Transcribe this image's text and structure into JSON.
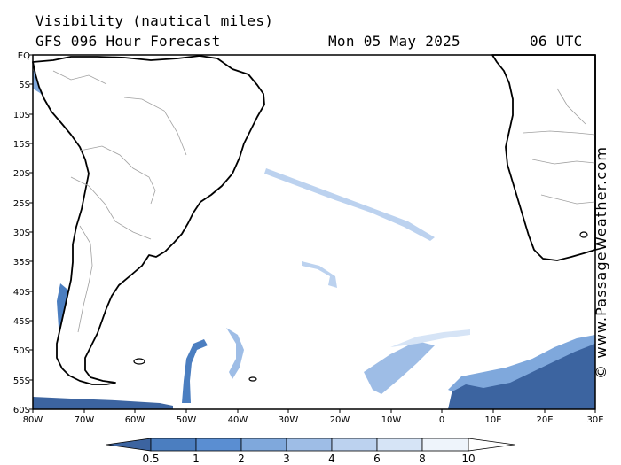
{
  "header": {
    "title": "Visibility (nautical miles)",
    "subtitle": "GFS 096 Hour Forecast",
    "date": "Mon 05 May 2025",
    "time": "06 UTC"
  },
  "credit": "© www.PassageWeather.com",
  "map": {
    "variable": "visibility",
    "units": "nautical miles",
    "lat_labels": [
      "EQ",
      "5S",
      "10S",
      "15S",
      "20S",
      "25S",
      "30S",
      "35S",
      "40S",
      "45S",
      "50S",
      "55S",
      "60S"
    ],
    "lon_labels": [
      "80W",
      "70W",
      "60W",
      "50W",
      "40W",
      "30W",
      "20W",
      "10W",
      "0",
      "10E",
      "20E",
      "30E"
    ],
    "land_color": "#ffffff",
    "coast_color": "#000000",
    "border_color": "#a0a0a0"
  },
  "colorbar": {
    "labels": [
      "0.5",
      "1",
      "2",
      "3",
      "4",
      "6",
      "8",
      "10"
    ],
    "colors": [
      "#3c64a0",
      "#4b7ec0",
      "#5a8ed2",
      "#7fa8dc",
      "#9ebde6",
      "#bcd2ef",
      "#d6e4f6",
      "#eef4fb",
      "#ffffff"
    ]
  }
}
